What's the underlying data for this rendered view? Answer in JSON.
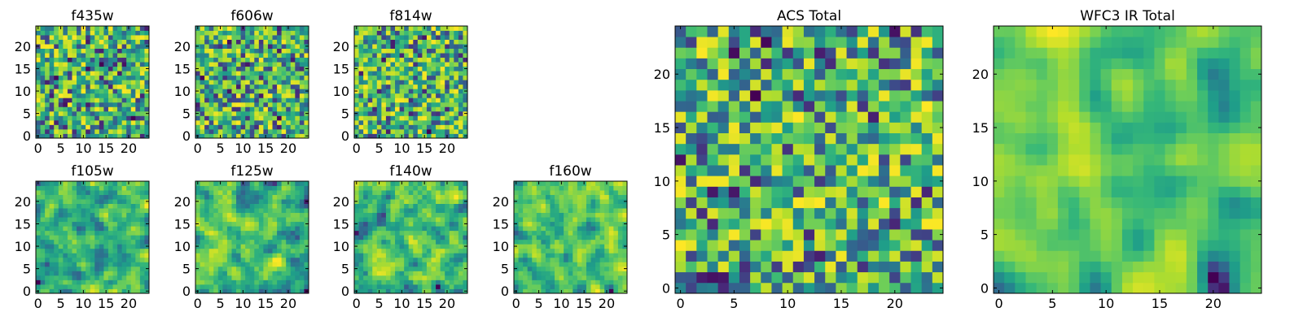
{
  "chart_data": [
    {
      "type": "heatmap",
      "title": "f435w",
      "grid_size": 25,
      "xticks": [
        "0",
        "5",
        "10",
        "15",
        "20"
      ],
      "yticks": [
        "0",
        "5",
        "10",
        "15",
        "20"
      ],
      "colormap": "viridis",
      "seed": 11,
      "smooth": 0,
      "contrast": 0.85
    },
    {
      "type": "heatmap",
      "title": "f606w",
      "grid_size": 25,
      "xticks": [
        "0",
        "5",
        "10",
        "15",
        "20"
      ],
      "yticks": [
        "0",
        "5",
        "10",
        "15",
        "20"
      ],
      "colormap": "viridis",
      "seed": 23,
      "smooth": 0,
      "contrast": 0.95
    },
    {
      "type": "heatmap",
      "title": "f814w",
      "grid_size": 25,
      "xticks": [
        "0",
        "5",
        "10",
        "15",
        "20"
      ],
      "yticks": [
        "0",
        "5",
        "10",
        "15",
        "20"
      ],
      "colormap": "viridis",
      "seed": 37,
      "smooth": 0,
      "contrast": 1.0
    },
    {
      "type": "heatmap",
      "title": "f105w",
      "grid_size": 25,
      "xticks": [
        "0",
        "5",
        "10",
        "15",
        "20"
      ],
      "yticks": [
        "0",
        "5",
        "10",
        "15",
        "20"
      ],
      "colormap": "viridis",
      "seed": 41,
      "smooth": 1,
      "contrast": 1.0
    },
    {
      "type": "heatmap",
      "title": "f125w",
      "grid_size": 25,
      "xticks": [
        "0",
        "5",
        "10",
        "15",
        "20"
      ],
      "yticks": [
        "0",
        "5",
        "10",
        "15",
        "20"
      ],
      "colormap": "viridis",
      "seed": 53,
      "smooth": 1,
      "contrast": 1.0
    },
    {
      "type": "heatmap",
      "title": "f140w",
      "grid_size": 25,
      "xticks": [
        "0",
        "5",
        "10",
        "15",
        "20"
      ],
      "yticks": [
        "0",
        "5",
        "10",
        "15",
        "20"
      ],
      "colormap": "viridis",
      "seed": 67,
      "smooth": 1,
      "contrast": 1.0
    },
    {
      "type": "heatmap",
      "title": "f160w",
      "grid_size": 25,
      "xticks": [
        "0",
        "5",
        "10",
        "15",
        "20"
      ],
      "yticks": [
        "0",
        "5",
        "10",
        "15",
        "20"
      ],
      "colormap": "viridis",
      "seed": 79,
      "smooth": 1,
      "contrast": 1.1
    },
    {
      "type": "heatmap",
      "title": "ACS Total",
      "grid_size": 25,
      "xticks": [
        "0",
        "5",
        "10",
        "15",
        "20"
      ],
      "yticks": [
        "0",
        "5",
        "10",
        "15",
        "20"
      ],
      "colormap": "viridis",
      "seed": 97,
      "smooth": 0,
      "contrast": 0.9
    },
    {
      "type": "heatmap",
      "title": "WFC3 IR Total",
      "grid_size": 25,
      "xticks": [
        "0",
        "5",
        "10",
        "15",
        "20"
      ],
      "yticks": [
        "0",
        "5",
        "10",
        "15",
        "20"
      ],
      "colormap": "viridis",
      "seed": 131,
      "smooth": 2,
      "contrast": 1.25
    }
  ]
}
